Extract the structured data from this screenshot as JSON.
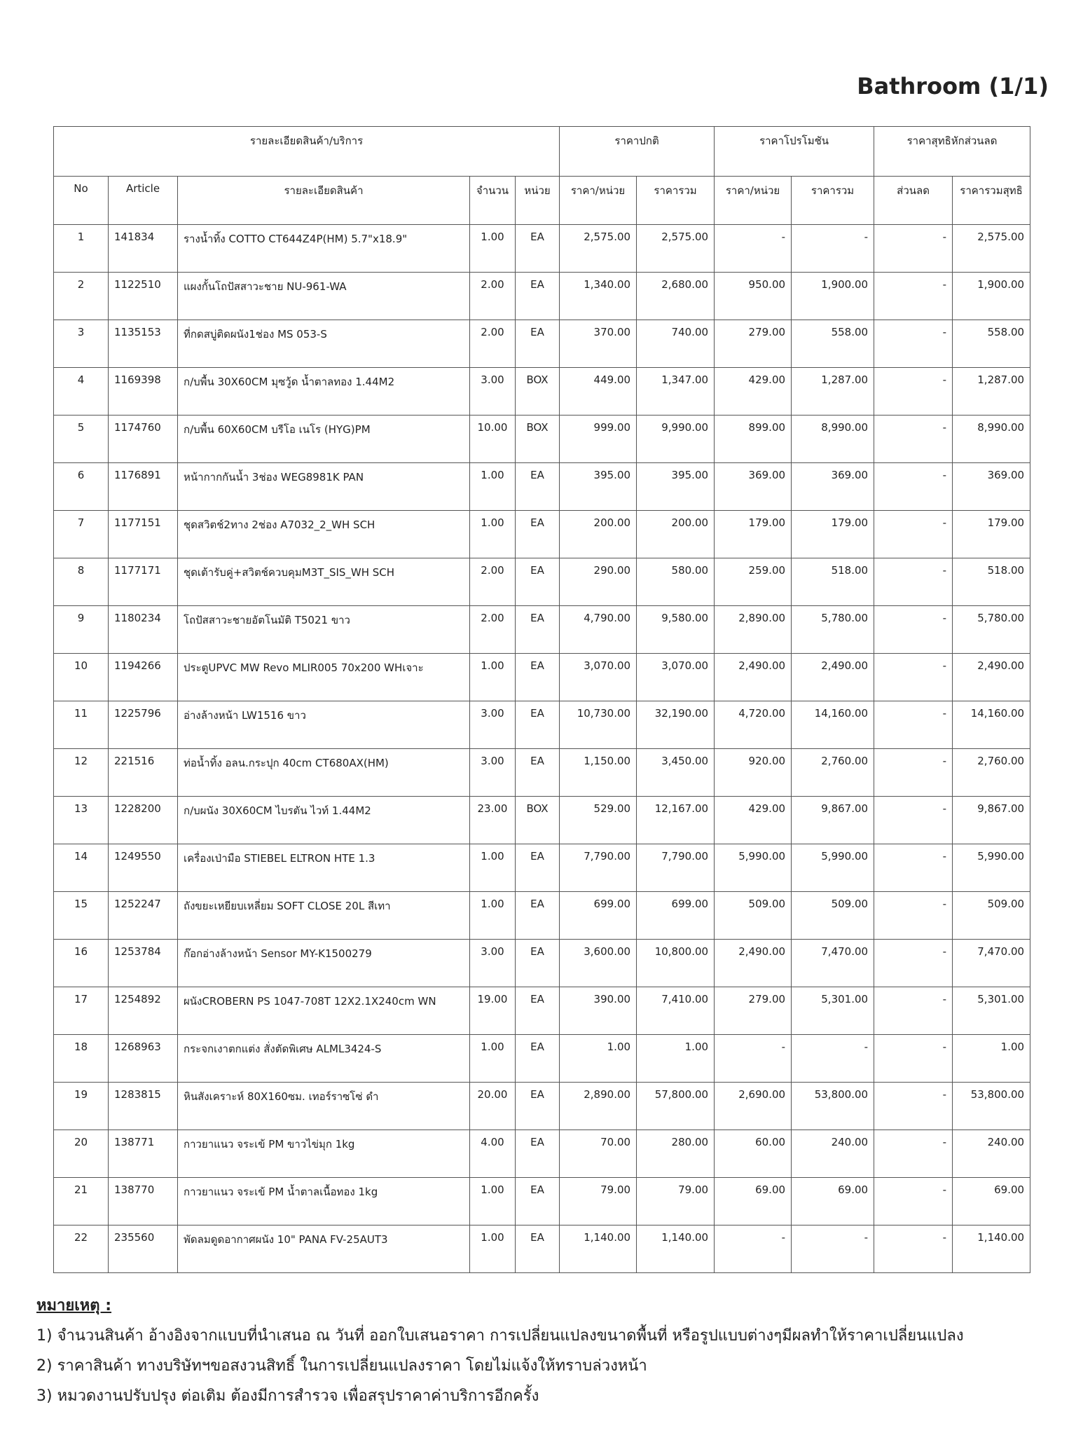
{
  "header": {
    "title": "Bathroom (1/1)"
  },
  "table": {
    "groups": [
      "รายละเอียดสินค้า/บริการ",
      "ราคาปกติ",
      "ราคาโปรโมชัน",
      "ราคาสุทธิหักส่วนลด"
    ],
    "columns": [
      "No",
      "Article",
      "รายละเอียดสินค้า",
      "จำนวน",
      "หน่วย",
      "ราคา/หน่วย",
      "ราคารวม",
      "ราคา/หน่วย",
      "ราคารวม",
      "ส่วนลด",
      "ราคารวมสุทธิ"
    ],
    "rows": [
      [
        "1",
        "141834",
        "รางน้ำทิ้ง COTTO CT644Z4P(HM) 5.7\"x18.9\"",
        "1.00",
        "EA",
        "2,575.00",
        "2,575.00",
        "-",
        "-",
        "-",
        "2,575.00"
      ],
      [
        "2",
        "1122510",
        "แผงกั้นโถปัสสาวะชาย NU-961-WA",
        "2.00",
        "EA",
        "1,340.00",
        "2,680.00",
        "950.00",
        "1,900.00",
        "-",
        "1,900.00"
      ],
      [
        "3",
        "1135153",
        "ที่กดสบู่ติดผนัง1ช่อง MS 053-S",
        "2.00",
        "EA",
        "370.00",
        "740.00",
        "279.00",
        "558.00",
        "-",
        "558.00"
      ],
      [
        "4",
        "1169398",
        "ก/บพื้น 30X60CM มุซวู้ด น้ำตาลทอง 1.44M2",
        "3.00",
        "BOX",
        "449.00",
        "1,347.00",
        "429.00",
        "1,287.00",
        "-",
        "1,287.00"
      ],
      [
        "5",
        "1174760",
        "ก/บพื้น 60X60CM บรีโอ เนโร (HYG)PM",
        "10.00",
        "BOX",
        "999.00",
        "9,990.00",
        "899.00",
        "8,990.00",
        "-",
        "8,990.00"
      ],
      [
        "6",
        "1176891",
        "หน้ากากกันน้ำ 3ช่อง WEG8981K PAN",
        "1.00",
        "EA",
        "395.00",
        "395.00",
        "369.00",
        "369.00",
        "-",
        "369.00"
      ],
      [
        "7",
        "1177151",
        "ชุดสวิตช์2ทาง 2ช่อง A7032_2_WH SCH",
        "1.00",
        "EA",
        "200.00",
        "200.00",
        "179.00",
        "179.00",
        "-",
        "179.00"
      ],
      [
        "8",
        "1177171",
        "ชุดเต้ารับคู่+สวิตช์ควบคุมM3T_SIS_WH SCH",
        "2.00",
        "EA",
        "290.00",
        "580.00",
        "259.00",
        "518.00",
        "-",
        "518.00"
      ],
      [
        "9",
        "1180234",
        "โถปัสสาวะชายอัตโนมัติ T5021 ขาว",
        "2.00",
        "EA",
        "4,790.00",
        "9,580.00",
        "2,890.00",
        "5,780.00",
        "-",
        "5,780.00"
      ],
      [
        "10",
        "1194266",
        "ประตูUPVC MW Revo MLIR005 70x200 WHเจาะ",
        "1.00",
        "EA",
        "3,070.00",
        "3,070.00",
        "2,490.00",
        "2,490.00",
        "-",
        "2,490.00"
      ],
      [
        "11",
        "1225796",
        "อ่างล้างหน้า  LW1516  ขาว",
        "3.00",
        "EA",
        "10,730.00",
        "32,190.00",
        "4,720.00",
        "14,160.00",
        "-",
        "14,160.00"
      ],
      [
        "12",
        "221516",
        "ท่อน้ำทิ้ง อลน.กระปุก 40cm CT680AX(HM)",
        "3.00",
        "EA",
        "1,150.00",
        "3,450.00",
        "920.00",
        "2,760.00",
        "-",
        "2,760.00"
      ],
      [
        "13",
        "1228200",
        "ก/บผนัง 30X60CM ไบรตัน ไวท์ 1.44M2",
        "23.00",
        "BOX",
        "529.00",
        "12,167.00",
        "429.00",
        "9,867.00",
        "-",
        "9,867.00"
      ],
      [
        "14",
        "1249550",
        "เครื่องเป่ามือ STIEBEL ELTRON HTE 1.3",
        "1.00",
        "EA",
        "7,790.00",
        "7,790.00",
        "5,990.00",
        "5,990.00",
        "-",
        "5,990.00"
      ],
      [
        "15",
        "1252247",
        "ถังขยะเหยียบเหลี่ยม SOFT CLOSE 20L สีเทา",
        "1.00",
        "EA",
        "699.00",
        "699.00",
        "509.00",
        "509.00",
        "-",
        "509.00"
      ],
      [
        "16",
        "1253784",
        "ก๊อกอ่างล้างหน้า Sensor MY-K1500279",
        "3.00",
        "EA",
        "3,600.00",
        "10,800.00",
        "2,490.00",
        "7,470.00",
        "-",
        "7,470.00"
      ],
      [
        "17",
        "1254892",
        "ผนังCROBERN PS 1047-708T 12X2.1X240cm WN",
        "19.00",
        "EA",
        "390.00",
        "7,410.00",
        "279.00",
        "5,301.00",
        "-",
        "5,301.00"
      ],
      [
        "18",
        "1268963",
        "กระจกเงาตกแต่ง สั่งตัดพิเศษ ALML3424-S",
        "1.00",
        "EA",
        "1.00",
        "1.00",
        "-",
        "-",
        "-",
        "1.00"
      ],
      [
        "19",
        "1283815",
        "หินสังเคราะห์ 80X160ซม. เทอร์ราซโซ่ ดำ",
        "20.00",
        "EA",
        "2,890.00",
        "57,800.00",
        "2,690.00",
        "53,800.00",
        "-",
        "53,800.00"
      ],
      [
        "20",
        "138771",
        "กาวยาแนว จระเข้ PM ขาวไข่มุก 1kg",
        "4.00",
        "EA",
        "70.00",
        "280.00",
        "60.00",
        "240.00",
        "-",
        "240.00"
      ],
      [
        "21",
        "138770",
        "กาวยาแนว จระเข้ PM น้ำตาลเนื้อทอง 1kg",
        "1.00",
        "EA",
        "79.00",
        "79.00",
        "69.00",
        "69.00",
        "-",
        "69.00"
      ],
      [
        "22",
        "235560",
        "พัดลมดูดอากาศผนัง 10\" PANA FV-25AUT3",
        "1.00",
        "EA",
        "1,140.00",
        "1,140.00",
        "-",
        "-",
        "-",
        "1,140.00"
      ]
    ]
  },
  "notes": {
    "heading": "หมายเหตุ :",
    "items": [
      "1) จำนวนสินค้า อ้างอิงจากแบบที่นำเสนอ ณ วันที่ ออกใบเสนอราคา การเปลี่ยนแปลงขนาดพื้นที่ หรือรูปแบบต่างๆมีผลทำให้ราคาเปลี่ยนแปลง",
      "2) ราคาสินค้า ทางบริษัทฯขอสงวนสิทธิ์ ในการเปลี่ยนแปลงราคา โดยไม่แจ้งให้ทราบล่วงหน้า",
      "3) หมวดงานปรับปรุง ต่อเติม ต้องมีการสำรวจ เพื่อสรุปราคาค่าบริการอีกครั้ง"
    ]
  }
}
